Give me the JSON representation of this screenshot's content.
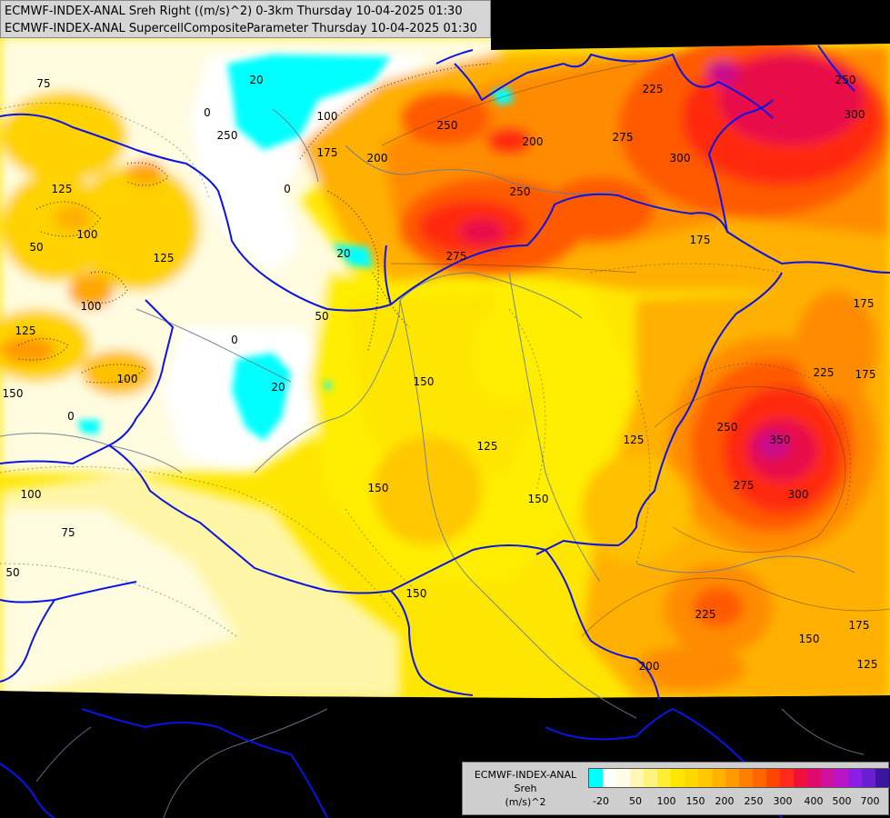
{
  "header": {
    "line1": "ECMWF-INDEX-ANAL Sreh Right ((m/s)^2) 0-3km Thursday 10-04-2025 01:30",
    "line2": "ECMWF-INDEX-ANAL SupercellCompositeParameter Thursday 10-04-2025 01:30"
  },
  "legend": {
    "line1": "ECMWF-INDEX-ANAL",
    "line2": "Sreh",
    "line3": "(m/s)^2",
    "ticks": [
      "-20",
      "50",
      "100",
      "150",
      "200",
      "250",
      "300",
      "400",
      "500",
      "700"
    ],
    "swatches": [
      "#00ffff",
      "#ffffff",
      "#fffde6",
      "#fff7b3",
      "#fff380",
      "#ffee33",
      "#ffe600",
      "#ffd700",
      "#ffc800",
      "#ffb300",
      "#ff9a00",
      "#ff8000",
      "#ff6600",
      "#ff4500",
      "#ff2a1a",
      "#f0103c",
      "#e00a6e",
      "#d0109e",
      "#b814c8",
      "#8c1ee6",
      "#6a1ed2",
      "#3c14a0",
      "#1e0f78",
      "#0a0a50"
    ]
  },
  "contour_labels": [
    {
      "text": "75"
    },
    {
      "text": "20"
    },
    {
      "text": "0"
    },
    {
      "text": "100"
    },
    {
      "text": "175"
    },
    {
      "text": "200"
    },
    {
      "text": "250"
    },
    {
      "text": "200"
    },
    {
      "text": "225"
    },
    {
      "text": "250"
    },
    {
      "text": "275"
    },
    {
      "text": "250"
    },
    {
      "text": "300"
    },
    {
      "text": "300"
    },
    {
      "text": "250"
    },
    {
      "text": "275"
    },
    {
      "text": "175"
    },
    {
      "text": "125"
    },
    {
      "text": "100"
    },
    {
      "text": "50"
    },
    {
      "text": "100"
    },
    {
      "text": "125"
    },
    {
      "text": "100"
    },
    {
      "text": "125"
    },
    {
      "text": "150"
    },
    {
      "text": "0"
    },
    {
      "text": "20"
    },
    {
      "text": "0"
    },
    {
      "text": "20"
    },
    {
      "text": "50"
    },
    {
      "text": "150"
    },
    {
      "text": "125"
    },
    {
      "text": "125"
    },
    {
      "text": "150"
    },
    {
      "text": "150"
    },
    {
      "text": "175"
    },
    {
      "text": "225"
    },
    {
      "text": "175"
    },
    {
      "text": "250"
    },
    {
      "text": "350"
    },
    {
      "text": "275"
    },
    {
      "text": "300"
    },
    {
      "text": "100"
    },
    {
      "text": "75"
    },
    {
      "text": "50"
    },
    {
      "text": "150"
    },
    {
      "text": "225"
    },
    {
      "text": "175"
    },
    {
      "text": "150"
    },
    {
      "text": "125"
    },
    {
      "text": "200"
    },
    {
      "text": "0"
    }
  ],
  "map": {
    "colors": {
      "outside": "#000000",
      "border": "#0000ff",
      "river": "#6a7a90",
      "cyan": "#00ffff",
      "white": "#ffffff",
      "pale": "#fffce0",
      "lightyellow": "#fff6a8",
      "yellow": "#ffee00",
      "gold": "#ffd200",
      "orange": "#ffb000",
      "darkorange": "#ff8c00",
      "redorange": "#ff5a00",
      "red": "#ff2a10",
      "crimson": "#e8104a",
      "magenta": "#c8108c"
    }
  }
}
